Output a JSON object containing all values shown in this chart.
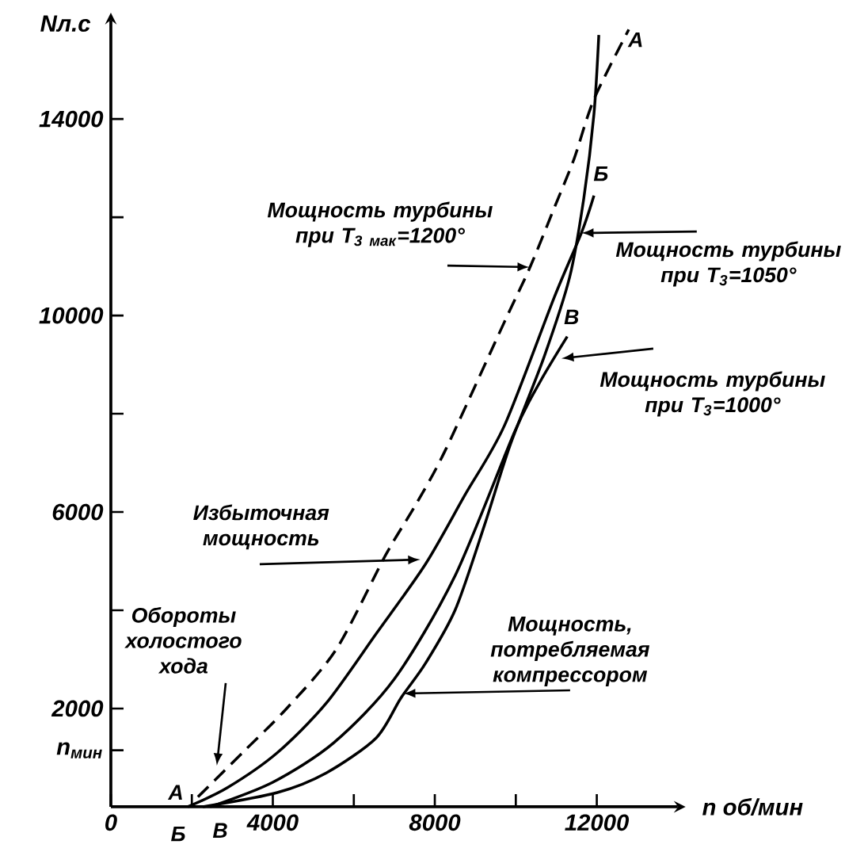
{
  "chart_data": {
    "type": "line",
    "xlabel": "n об/мин",
    "ylabel": "Nл.с",
    "xlim": [
      0,
      14000
    ],
    "ylim": [
      0,
      16000
    ],
    "xticks": [
      {
        "value": 0,
        "label": "0"
      },
      {
        "value": 2000,
        "label": null
      },
      4000,
      {
        "value": 6000,
        "label": null
      },
      8000,
      {
        "value": 10000,
        "label": null
      },
      12000
    ],
    "yticks": [
      {
        "value": 1150,
        "label": "n$_{мин}$"
      },
      2000,
      {
        "value": 4000,
        "label": null
      },
      6000,
      {
        "value": 8000,
        "label": null
      },
      10000,
      {
        "value": 12000,
        "label": null
      },
      14000
    ],
    "series": [
      {
        "color": "#000000",
        "line_style": "dashed",
        "x": [
          2150,
          3250,
          4340,
          5570,
          6790,
          7530,
          8250,
          9720,
          10350,
          10950,
          11440,
          11930,
          12790
        ],
        "values": [
          200,
          1100,
          2000,
          3210,
          5130,
          6150,
          7240,
          9870,
          10980,
          12190,
          13190,
          14400,
          15820
        ]
      },
      {
        "color": "#000000",
        "line_style": "solid",
        "x": [
          1900,
          2880,
          4110,
          5320,
          6550,
          7770,
          8740,
          9720,
          10950,
          11620,
          11930
        ],
        "values": [
          0,
          390,
          1100,
          2110,
          3520,
          4940,
          6340,
          7760,
          10370,
          11680,
          12440
        ]
      },
      {
        "color": "#000000",
        "line_style": "solid",
        "x": [
          2450,
          4000,
          5500,
          7000,
          8500,
          9980,
          10600,
          11270
        ],
        "values": [
          0,
          500,
          1300,
          2600,
          4700,
          7650,
          8650,
          9570
        ]
      },
      {
        "color": "#000000",
        "line_style": "solid",
        "x": [
          2270,
          4110,
          5320,
          6550,
          7160,
          7770,
          8510,
          9230,
          9860,
          10700,
          11330,
          11680,
          11930,
          12050
        ],
        "values": [
          0,
          290,
          690,
          1400,
          2210,
          2920,
          4020,
          5740,
          7360,
          9160,
          10780,
          12390,
          14100,
          15710
        ]
      }
    ],
    "annotations": [
      "Мощность турбины при T$_{3 мак}$=1200°",
      "Мощность турбины при T$_{3}$=1050°",
      "Мощность турбины при T$_{3}$=1000°",
      "Избыточная мощность",
      "Мощность, потребляемая компрессором",
      "Обороты холостого хода",
      "A",
      "Б",
      "В",
      "A",
      "Б",
      "В"
    ]
  }
}
